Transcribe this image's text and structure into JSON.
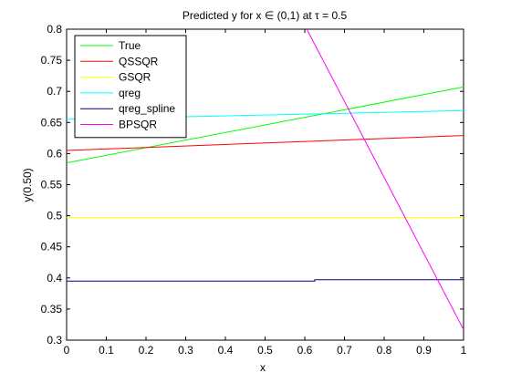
{
  "chart_data": {
    "type": "line",
    "title": "Predicted y for x ∈ (0,1) at τ = 0.5",
    "xlabel": "x",
    "ylabel": "y(0.50)",
    "xlim": [
      0,
      1
    ],
    "ylim": [
      0.3,
      0.8
    ],
    "xticks": [
      "0",
      "0.1",
      "0.2",
      "0.3",
      "0.4",
      "0.5",
      "0.6",
      "0.7",
      "0.8",
      "0.9",
      "1"
    ],
    "yticks": [
      "0.3",
      "0.35",
      "0.4",
      "0.45",
      "0.5",
      "0.55",
      "0.6",
      "0.65",
      "0.7",
      "0.75",
      "0.8"
    ],
    "grid": false,
    "legend_position": "top-left",
    "series": [
      {
        "name": "True",
        "color": "#00ff00",
        "x": [
          0,
          1
        ],
        "y": [
          0.585,
          0.707
        ]
      },
      {
        "name": "QSSQR",
        "color": "#ff0000",
        "x": [
          0,
          1
        ],
        "y": [
          0.605,
          0.629
        ]
      },
      {
        "name": "GSQR",
        "color": "#ffff00",
        "x": [
          0,
          1
        ],
        "y": [
          0.497,
          0.497
        ]
      },
      {
        "name": "qreg",
        "color": "#00ffff",
        "x": [
          0,
          1
        ],
        "y": [
          0.655,
          0.669
        ]
      },
      {
        "name": "qreg_spline",
        "color": "#00007f",
        "x": [
          0,
          0.625,
          0.625,
          1
        ],
        "y": [
          0.395,
          0.395,
          0.397,
          0.397
        ]
      },
      {
        "name": "BPSQR",
        "color": "#ff00ff",
        "x": [
          0.605,
          1
        ],
        "y": [
          0.8,
          0.317
        ]
      }
    ]
  }
}
